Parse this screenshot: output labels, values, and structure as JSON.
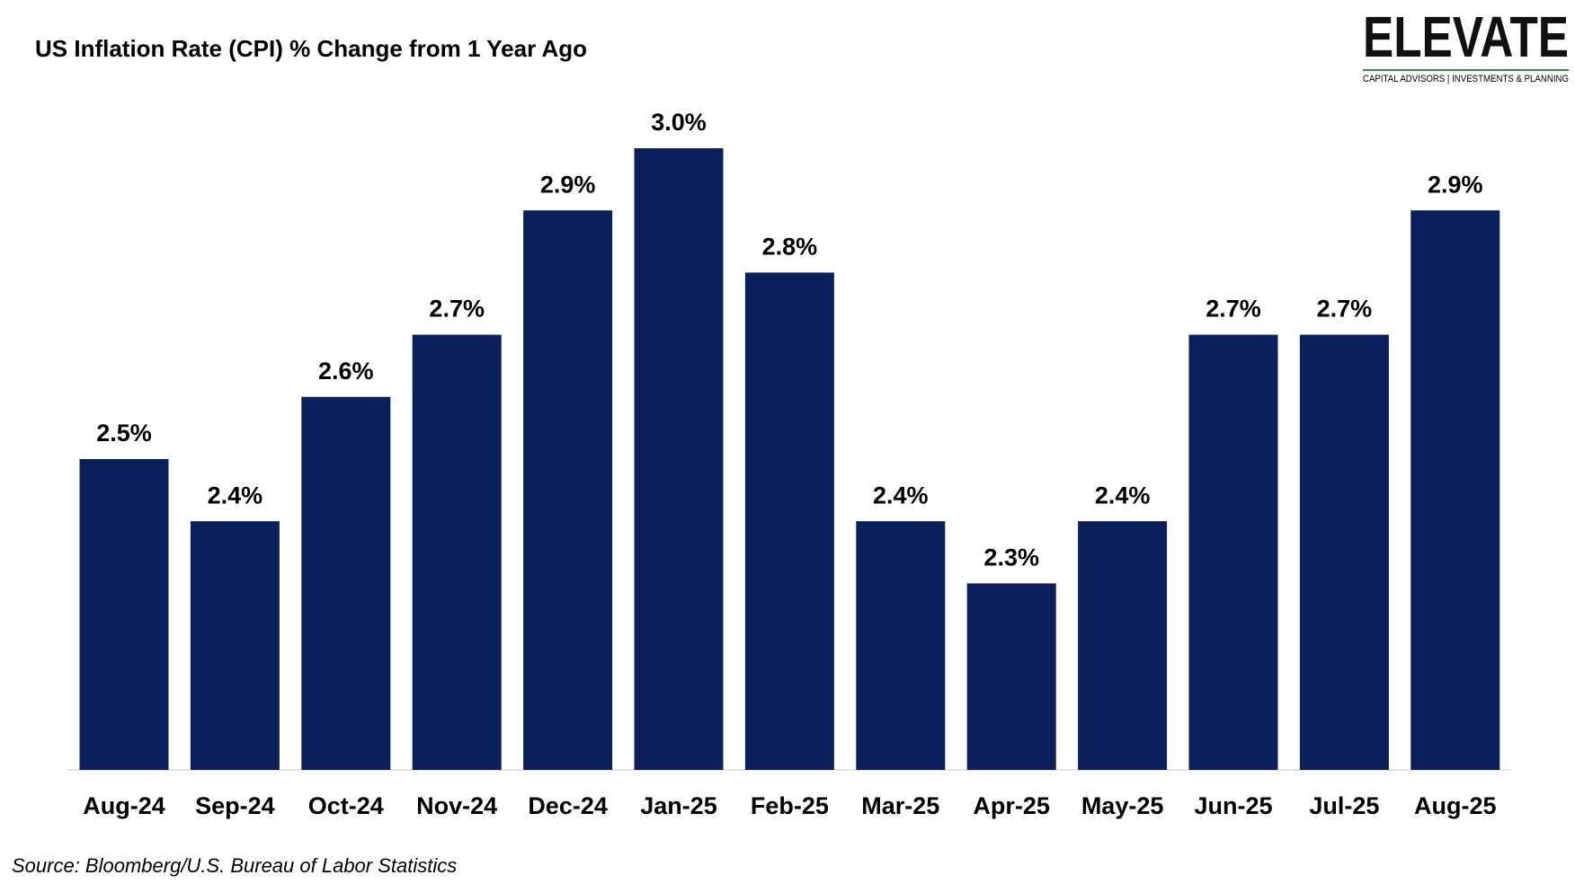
{
  "chart_data": {
    "type": "bar",
    "title": "US Inflation Rate (CPI) % Change from 1 Year Ago",
    "categories": [
      "Aug-24",
      "Sep-24",
      "Oct-24",
      "Nov-24",
      "Dec-24",
      "Jan-25",
      "Feb-25",
      "Mar-25",
      "Apr-25",
      "May-25",
      "Jun-25",
      "Jul-25",
      "Aug-25"
    ],
    "values": [
      2.5,
      2.4,
      2.6,
      2.7,
      2.9,
      3.0,
      2.8,
      2.4,
      2.3,
      2.4,
      2.7,
      2.7,
      2.9
    ],
    "value_labels": [
      "2.5%",
      "2.4%",
      "2.6%",
      "2.7%",
      "2.9%",
      "3.0%",
      "2.8%",
      "2.4%",
      "2.3%",
      "2.4%",
      "2.7%",
      "2.7%",
      "2.9%"
    ],
    "color": "#0b1f5c",
    "ylim": [
      2.0,
      3.0
    ],
    "source": "Source: Bloomberg/U.S. Bureau of Labor Statistics"
  },
  "logo": {
    "name": "ELEVATE",
    "tagline": "CAPITAL ADVISORS | INVESTMENTS & PLANNING"
  }
}
